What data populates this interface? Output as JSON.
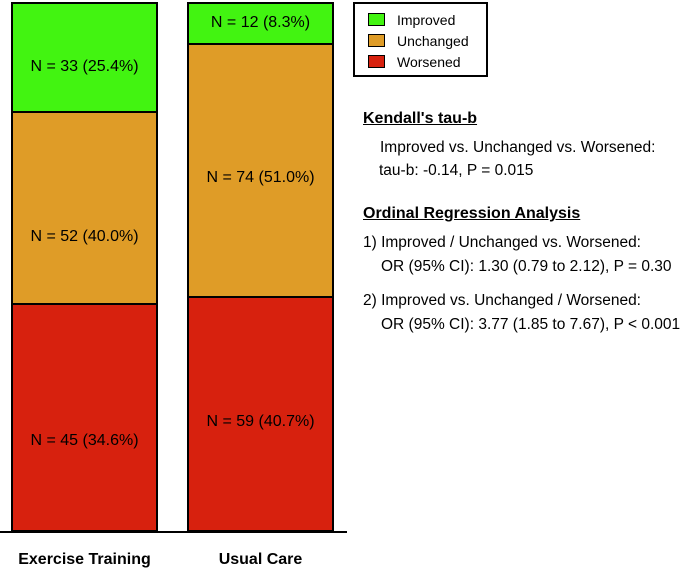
{
  "colors": {
    "improved": "#42f411",
    "unchanged": "#df9c27",
    "worsened": "#d7210e",
    "outline": "#000000",
    "background": "#ffffff"
  },
  "chart_data": {
    "type": "bar",
    "subtype": "stacked-100-percent-column",
    "categories": [
      "Exercise Training",
      "Usual Care"
    ],
    "series": [
      {
        "name": "Improved",
        "color": "#42f411",
        "counts": [
          33,
          12
        ],
        "percents": [
          25.4,
          8.3
        ]
      },
      {
        "name": "Unchanged",
        "color": "#df9c27",
        "counts": [
          52,
          74
        ],
        "percents": [
          40.0,
          51.0
        ]
      },
      {
        "name": "Worsened",
        "color": "#d7210e",
        "counts": [
          45,
          59
        ],
        "percents": [
          34.6,
          40.7
        ]
      }
    ],
    "segment_labels": {
      "exercise_improved": "N = 33 (25.4%)",
      "exercise_unchanged": "N = 52 (40.0%)",
      "exercise_worsened": "N = 45 (34.6%)",
      "usual_improved": "N = 12 (8.3%)",
      "usual_unchanged": "N = 74 (51.0%)",
      "usual_worsened": "N = 59 (40.7%)"
    },
    "legend_position": "top-right",
    "grid": false,
    "y_axis_visible": false,
    "baseline_visible": true
  },
  "categories": {
    "exercise": "Exercise Training",
    "usual": "Usual Care"
  },
  "legend": {
    "items": [
      {
        "label": "Improved",
        "color": "#42f411"
      },
      {
        "label": "Unchanged",
        "color": "#df9c27"
      },
      {
        "label": "Worsened",
        "color": "#d7210e"
      }
    ]
  },
  "stats": {
    "kendall": {
      "heading": "Kendall's tau-b",
      "line1": "Improved vs. Unchanged vs. Worsened:",
      "line2": "tau-b: -0.14, P = 0.015"
    },
    "ordinal": {
      "heading": "Ordinal Regression Analysis",
      "item1_line1": "1) Improved / Unchanged vs. Worsened:",
      "item1_line2": "OR (95% CI): 1.30 (0.79 to 2.12), P = 0.30",
      "item2_line1": "2) Improved vs. Unchanged / Worsened:",
      "item2_line2": "OR (95% CI): 3.77 (1.85 to 7.67), P < 0.001"
    }
  }
}
